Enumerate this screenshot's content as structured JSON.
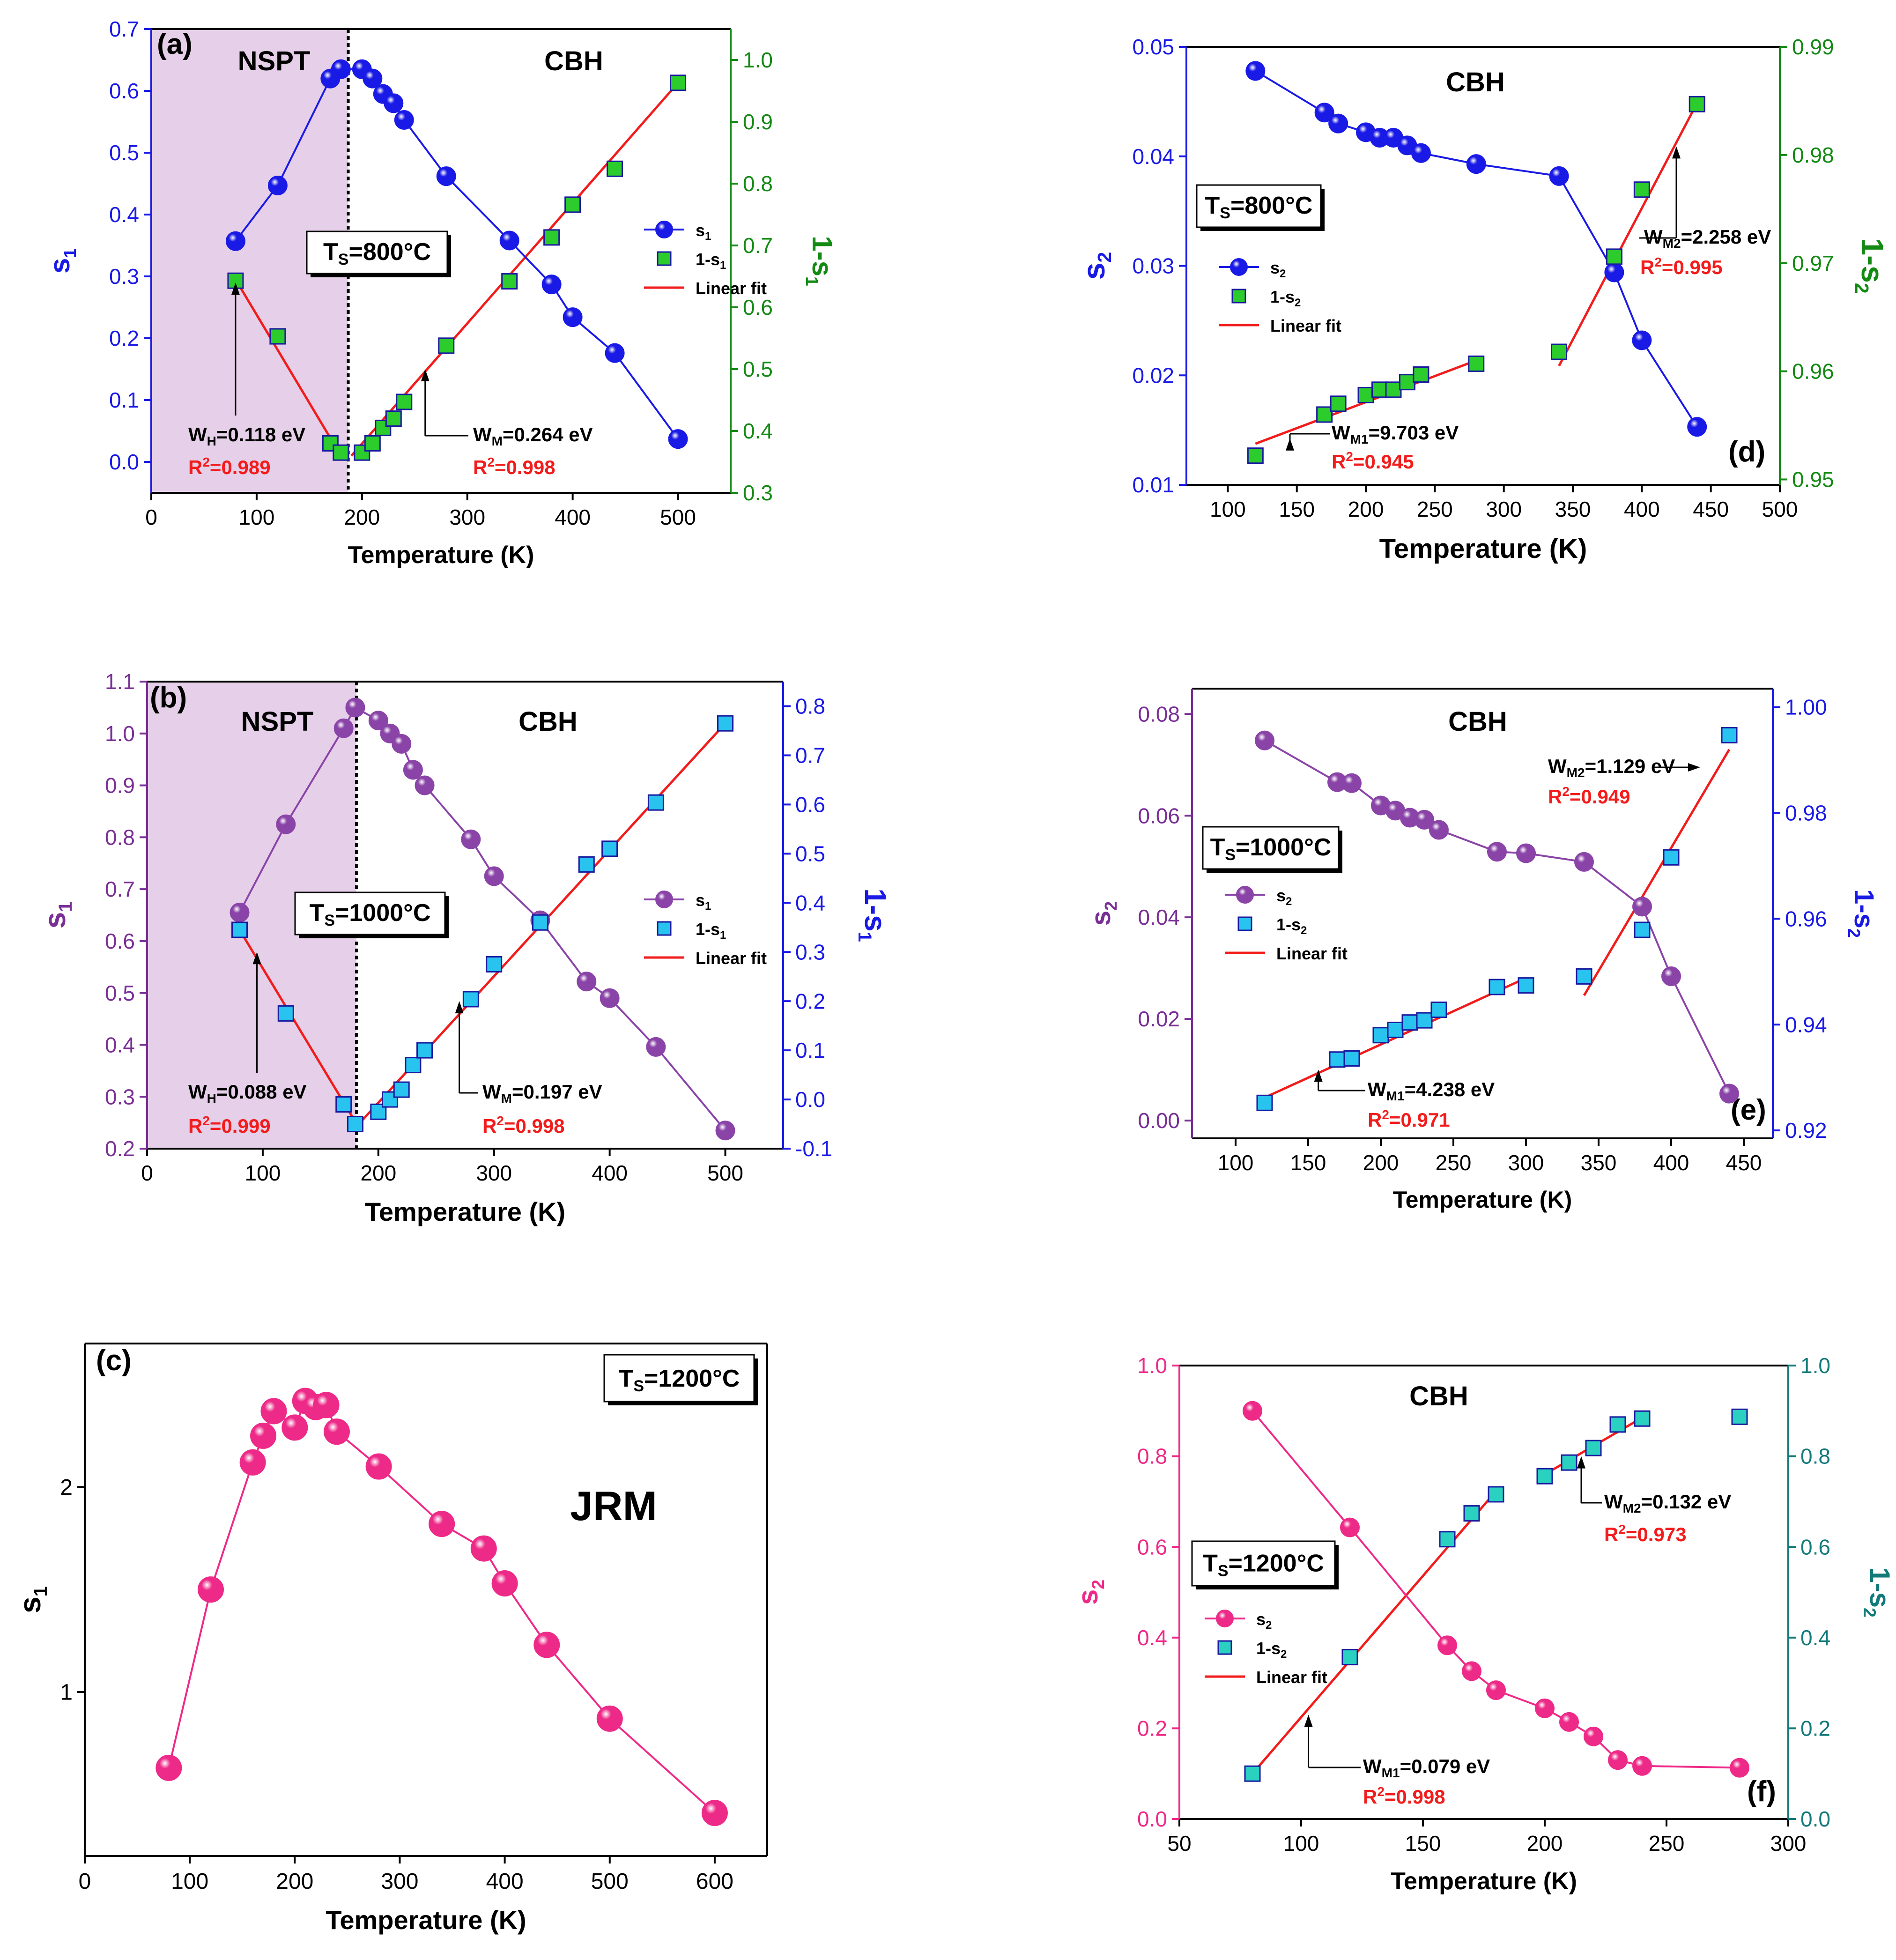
{
  "chart_data": [
    {
      "id": "a",
      "type": "scatter",
      "panel_label": "(a)",
      "xlabel": "Temperature (K)",
      "ylabel": "s",
      "ylabel_sub": "1",
      "y2label": "1-s",
      "y2label_sub": "1",
      "xlim": [
        0,
        550
      ],
      "ylim": [
        -0.05,
        0.7
      ],
      "y2lim": [
        0.3,
        1.05
      ],
      "xticks": [
        0,
        100,
        200,
        300,
        400,
        500
      ],
      "yticks": [
        0.0,
        0.1,
        0.2,
        0.3,
        0.4,
        0.5,
        0.6,
        0.7
      ],
      "y2ticks": [
        0.3,
        0.4,
        0.5,
        0.6,
        0.7,
        0.8,
        0.9,
        1.0
      ],
      "colors": {
        "left": "#1a1ae6",
        "right": "#138a13"
      },
      "shade": {
        "x": [
          0,
          187
        ],
        "color": "#e6cfe8"
      },
      "vline": 187,
      "region_labels": [
        "NSPT",
        "CBH"
      ],
      "ts_label": "TS=800°C",
      "series": [
        {
          "name": "s1",
          "axis": "left",
          "marker": "sphere",
          "color": "#1a1ae6",
          "connect": true,
          "x": [
            80,
            120,
            170,
            180,
            200,
            210,
            220,
            230,
            240,
            280,
            340,
            380,
            400,
            440,
            500
          ],
          "y": [
            0.357,
            0.447,
            0.62,
            0.635,
            0.635,
            0.62,
            0.595,
            0.58,
            0.553,
            0.462,
            0.358,
            0.287,
            0.234,
            0.176,
            0.037
          ]
        },
        {
          "name": "1-s1",
          "axis": "right",
          "marker": "square",
          "color": "#2bcc2b",
          "x": [
            80,
            120,
            170,
            180,
            200,
            210,
            220,
            230,
            240,
            280,
            340,
            380,
            400,
            440,
            500
          ],
          "y": [
            0.643,
            0.553,
            0.38,
            0.365,
            0.365,
            0.38,
            0.405,
            0.42,
            0.447,
            0.538,
            0.642,
            0.713,
            0.766,
            0.824,
            0.963
          ]
        }
      ],
      "fit_lines": [
        {
          "axis": "right",
          "x": [
            80,
            180
          ],
          "y": [
            0.645,
            0.36
          ]
        },
        {
          "axis": "right",
          "x": [
            190,
            500
          ],
          "y": [
            0.36,
            0.963
          ]
        }
      ],
      "legend": [
        "s1",
        "1-s1",
        "Linear fit"
      ],
      "annotations": [
        {
          "w": "W",
          "sub": "H",
          "value": "=0.118 eV",
          "r2": "=0.989"
        },
        {
          "w": "W",
          "sub": "M",
          "value": "=0.264 eV",
          "r2": "=0.998"
        }
      ]
    },
    {
      "id": "d",
      "type": "scatter",
      "panel_label": "(d)",
      "xlabel": "Temperature (K)",
      "ylabel": "s",
      "ylabel_sub": "2",
      "y2label": "1-s",
      "y2label_sub": "2",
      "xlim": [
        70,
        500
      ],
      "ylim": [
        0.01,
        0.05
      ],
      "y2lim": [
        0.9495,
        0.99
      ],
      "xticks": [
        100,
        150,
        200,
        250,
        300,
        350,
        400,
        450,
        500
      ],
      "yticks": [
        0.01,
        0.02,
        0.03,
        0.04,
        0.05
      ],
      "y2ticks": [
        0.95,
        0.96,
        0.97,
        0.98,
        0.99
      ],
      "colors": {
        "left": "#1a1ae6",
        "right": "#138a13"
      },
      "region_labels": [
        "CBH"
      ],
      "ts_label": "TS=800°C",
      "series": [
        {
          "name": "s2",
          "axis": "left",
          "marker": "sphere",
          "color": "#1a1ae6",
          "connect": true,
          "x": [
            120,
            170,
            180,
            200,
            210,
            220,
            230,
            240,
            280,
            340,
            380,
            400,
            440
          ],
          "y": [
            0.0478,
            0.044,
            0.043,
            0.0422,
            0.0417,
            0.0417,
            0.041,
            0.0403,
            0.0393,
            0.0382,
            0.0294,
            0.0232,
            0.0153
          ]
        },
        {
          "name": "1-s2",
          "axis": "right",
          "marker": "square",
          "color": "#2bcc2b",
          "x": [
            120,
            170,
            180,
            200,
            210,
            220,
            230,
            240,
            280,
            340,
            380,
            400,
            440
          ],
          "y": [
            0.9522,
            0.956,
            0.957,
            0.9578,
            0.9583,
            0.9583,
            0.959,
            0.9597,
            0.9607,
            0.9618,
            0.9706,
            0.9768,
            0.9847
          ]
        }
      ],
      "fit_lines": [
        {
          "axis": "right",
          "x": [
            120,
            280
          ],
          "y": [
            0.9533,
            0.961
          ]
        },
        {
          "axis": "right",
          "x": [
            340,
            440
          ],
          "y": [
            0.9605,
            0.9848
          ]
        }
      ],
      "legend": [
        "s2",
        "1-s2",
        "Linear fit"
      ],
      "annotations": [
        {
          "w": "W",
          "sub": "M1",
          "value": "=9.703 eV",
          "r2": "=0.945"
        },
        {
          "w": "W",
          "sub": "M2",
          "value": "=2.258 eV",
          "r2": "=0.995"
        }
      ]
    },
    {
      "id": "b",
      "type": "scatter",
      "panel_label": "(b)",
      "xlabel": "Temperature (K)",
      "ylabel": "s",
      "ylabel_sub": "1",
      "y2label": "1-s",
      "y2label_sub": "1",
      "xlim": [
        0,
        550
      ],
      "ylim": [
        0.2,
        1.1
      ],
      "y2lim": [
        -0.1,
        0.85
      ],
      "xticks": [
        0,
        100,
        200,
        300,
        400,
        500
      ],
      "yticks": [
        0.2,
        0.3,
        0.4,
        0.5,
        0.6,
        0.7,
        0.8,
        0.9,
        1.0,
        1.1
      ],
      "y2ticks": [
        -0.1,
        0.0,
        0.1,
        0.2,
        0.3,
        0.4,
        0.5,
        0.6,
        0.7,
        0.8
      ],
      "colors": {
        "left": "#7a2f96",
        "right": "#1a1ae6"
      },
      "shade": {
        "x": [
          0,
          181
        ],
        "color": "#e6cfe8"
      },
      "vline": 181,
      "region_labels": [
        "NSPT",
        "CBH"
      ],
      "ts_label": "TS=1000°C",
      "series": [
        {
          "name": "s1",
          "axis": "left",
          "marker": "sphere",
          "color": "#8a44a8",
          "connect": true,
          "x": [
            80,
            120,
            170,
            180,
            200,
            210,
            220,
            230,
            240,
            280,
            300,
            340,
            380,
            400,
            440,
            500
          ],
          "y": [
            0.655,
            0.825,
            1.01,
            1.05,
            1.025,
            1.0,
            0.98,
            0.93,
            0.9,
            0.796,
            0.725,
            0.64,
            0.522,
            0.49,
            0.396,
            0.235
          ]
        },
        {
          "name": "1-s1",
          "axis": "right",
          "marker": "square",
          "color": "#29c3ef",
          "x": [
            80,
            120,
            170,
            180,
            200,
            210,
            220,
            230,
            240,
            280,
            300,
            340,
            380,
            400,
            440,
            500
          ],
          "y": [
            0.345,
            0.175,
            -0.01,
            -0.05,
            -0.025,
            0.0,
            0.02,
            0.07,
            0.1,
            0.204,
            0.275,
            0.36,
            0.478,
            0.51,
            0.604,
            0.765
          ]
        }
      ],
      "fit_lines": [
        {
          "axis": "right",
          "x": [
            80,
            180
          ],
          "y": [
            0.345,
            -0.045
          ]
        },
        {
          "axis": "right",
          "x": [
            185,
            500
          ],
          "y": [
            -0.045,
            0.765
          ]
        }
      ],
      "legend": [
        "s1",
        "1-s1",
        "Linear fit"
      ],
      "annotations": [
        {
          "w": "W",
          "sub": "H",
          "value": "=0.088 eV",
          "r2": "=0.999"
        },
        {
          "w": "W",
          "sub": "M",
          "value": "=0.197 eV",
          "r2": "=0.998"
        }
      ]
    },
    {
      "id": "e",
      "type": "scatter",
      "panel_label": "(e)",
      "xlabel": "Temperature (K)",
      "ylabel": "s",
      "ylabel_sub": "2",
      "y2label": "1-s",
      "y2label_sub": "2",
      "xlim": [
        70,
        470
      ],
      "ylim": [
        -0.0035,
        0.085
      ],
      "y2lim": [
        0.9185,
        1.0035
      ],
      "xticks": [
        100,
        150,
        200,
        250,
        300,
        350,
        400,
        450
      ],
      "yticks": [
        0.0,
        0.02,
        0.04,
        0.06,
        0.08
      ],
      "y2ticks": [
        0.92,
        0.94,
        0.96,
        0.98,
        1.0
      ],
      "colors": {
        "left": "#7a2f96",
        "right": "#1a1ae6"
      },
      "region_labels": [
        "CBH"
      ],
      "ts_label": "TS=1000°C",
      "series": [
        {
          "name": "s2",
          "axis": "left",
          "marker": "sphere",
          "color": "#8a44a8",
          "connect": true,
          "x": [
            120,
            170,
            180,
            200,
            210,
            220,
            230,
            240,
            280,
            300,
            340,
            380,
            400,
            440
          ],
          "y": [
            0.0748,
            0.0666,
            0.0664,
            0.062,
            0.061,
            0.0596,
            0.0592,
            0.0572,
            0.0529,
            0.0526,
            0.0509,
            0.0421,
            0.0284,
            0.0053
          ]
        },
        {
          "name": "1-s2",
          "axis": "right",
          "marker": "square",
          "color": "#29c3ef",
          "x": [
            120,
            170,
            180,
            200,
            210,
            220,
            230,
            240,
            280,
            300,
            340,
            380,
            400,
            440
          ],
          "y": [
            0.9252,
            0.9334,
            0.9336,
            0.938,
            0.939,
            0.9404,
            0.9408,
            0.9428,
            0.9471,
            0.9474,
            0.9491,
            0.9579,
            0.9716,
            0.9947
          ]
        }
      ],
      "fit_lines": [
        {
          "axis": "right",
          "x": [
            120,
            300
          ],
          "y": [
            0.9262,
            0.9488
          ]
        },
        {
          "axis": "right",
          "x": [
            340,
            440
          ],
          "y": [
            0.9455,
            0.992
          ]
        }
      ],
      "legend": [
        "s2",
        "1-s2",
        "Linear fit"
      ],
      "annotations": [
        {
          "w": "W",
          "sub": "M1",
          "value": "=4.238 eV",
          "r2": "=0.971"
        },
        {
          "w": "W",
          "sub": "M2",
          "value": "=1.129 eV",
          "r2": "=0.949"
        }
      ]
    },
    {
      "id": "c",
      "type": "line",
      "panel_label": "(c)",
      "xlabel": "Temperature (K)",
      "ylabel": "s",
      "ylabel_sub": "1",
      "xlim": [
        0,
        650
      ],
      "ylim": [
        0.2,
        2.7
      ],
      "xticks": [
        0,
        100,
        200,
        300,
        400,
        500,
        600
      ],
      "yticks": [
        1,
        2
      ],
      "colors": {
        "left": "#000000"
      },
      "region_labels": [
        "JRM"
      ],
      "ts_label": "TS=1200°C",
      "series": [
        {
          "name": "s1",
          "axis": "left",
          "marker": "sphere",
          "color": "#ee2a88",
          "connect": true,
          "x": [
            80,
            120,
            160,
            170,
            180,
            200,
            210,
            220,
            230,
            240,
            280,
            340,
            380,
            400,
            440,
            500,
            600
          ],
          "y": [
            0.63,
            1.5,
            2.12,
            2.25,
            2.37,
            2.29,
            2.42,
            2.39,
            2.4,
            2.27,
            2.1,
            1.82,
            1.7,
            1.53,
            1.23,
            0.87,
            0.41
          ]
        }
      ],
      "fit_lines": [],
      "legend": [],
      "annotations": []
    },
    {
      "id": "f",
      "type": "scatter",
      "panel_label": "(f)",
      "xlabel": "Temperature (K)",
      "ylabel": "s",
      "ylabel_sub": "2",
      "y2label": "1-s",
      "y2label_sub": "2",
      "xlim": [
        50,
        300
      ],
      "ylim": [
        0.0,
        1.0
      ],
      "y2lim": [
        0.0,
        1.0
      ],
      "xticks": [
        50,
        100,
        150,
        200,
        250,
        300
      ],
      "yticks": [
        0.0,
        0.2,
        0.4,
        0.6,
        0.8,
        1.0
      ],
      "y2ticks": [
        0.0,
        0.2,
        0.4,
        0.6,
        0.8,
        1.0
      ],
      "colors": {
        "left": "#ee2a88",
        "right": "#137a7a"
      },
      "region_labels": [
        "CBH"
      ],
      "ts_label": "TS=1200°C",
      "series": [
        {
          "name": "s2",
          "axis": "left",
          "marker": "sphere",
          "color": "#ee2a88",
          "connect": true,
          "x": [
            80,
            120,
            160,
            170,
            180,
            200,
            210,
            220,
            230,
            240,
            280
          ],
          "y": [
            0.9,
            0.643,
            0.383,
            0.326,
            0.284,
            0.244,
            0.214,
            0.182,
            0.13,
            0.117,
            0.113
          ]
        },
        {
          "name": "1-s2",
          "axis": "right",
          "marker": "square",
          "color": "#2ad0c0",
          "x": [
            80,
            120,
            160,
            170,
            180,
            200,
            210,
            220,
            230,
            240,
            280
          ],
          "y": [
            0.1,
            0.357,
            0.617,
            0.674,
            0.716,
            0.756,
            0.786,
            0.818,
            0.87,
            0.883,
            0.887
          ]
        }
      ],
      "fit_lines": [
        {
          "axis": "right",
          "x": [
            80,
            180
          ],
          "y": [
            0.1,
            0.723
          ]
        },
        {
          "axis": "right",
          "x": [
            200,
            240
          ],
          "y": [
            0.76,
            0.885
          ]
        }
      ],
      "legend": [
        "s2",
        "1-s2",
        "Linear fit"
      ],
      "annotations": [
        {
          "w": "W",
          "sub": "M1",
          "value": "=0.079 eV",
          "r2": "=0.998"
        },
        {
          "w": "W",
          "sub": "M2",
          "value": "=0.132 eV",
          "r2": "=0.973"
        }
      ]
    }
  ],
  "labels": {
    "r2_prefix": "R",
    "r2_exp": "2"
  }
}
